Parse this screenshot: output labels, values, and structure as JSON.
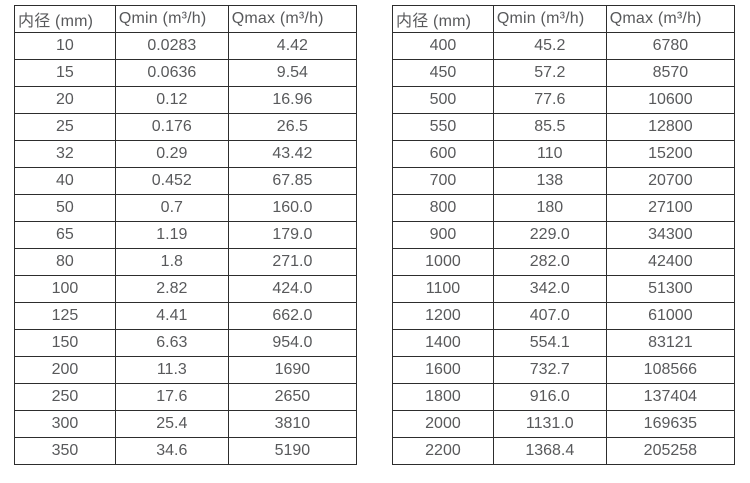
{
  "columns": [
    "内径 (mm)",
    "Qmin (m³/h)",
    "Qmax (m³/h)"
  ],
  "colors": {
    "border": "#2d2d2d",
    "text": "#58595b",
    "background": "#ffffff"
  },
  "tables": [
    {
      "name": "small-diameters",
      "rows": [
        [
          "10",
          "0.0283",
          "4.42"
        ],
        [
          "15",
          "0.0636",
          "9.54"
        ],
        [
          "20",
          "0.12",
          "16.96"
        ],
        [
          "25",
          "0.176",
          "26.5"
        ],
        [
          "32",
          "0.29",
          "43.42"
        ],
        [
          "40",
          "0.452",
          "67.85"
        ],
        [
          "50",
          "0.7",
          "160.0"
        ],
        [
          "65",
          "1.19",
          "179.0"
        ],
        [
          "80",
          "1.8",
          "271.0"
        ],
        [
          "100",
          "2.82",
          "424.0"
        ],
        [
          "125",
          "4.41",
          "662.0"
        ],
        [
          "150",
          "6.63",
          "954.0"
        ],
        [
          "200",
          "11.3",
          "1690"
        ],
        [
          "250",
          "17.6",
          "2650"
        ],
        [
          "300",
          "25.4",
          "3810"
        ],
        [
          "350",
          "34.6",
          "5190"
        ]
      ]
    },
    {
      "name": "large-diameters",
      "rows": [
        [
          "400",
          "45.2",
          "6780"
        ],
        [
          "450",
          "57.2",
          "8570"
        ],
        [
          "500",
          "77.6",
          "10600"
        ],
        [
          "550",
          "85.5",
          "12800"
        ],
        [
          "600",
          "110",
          "15200"
        ],
        [
          "700",
          "138",
          "20700"
        ],
        [
          "800",
          "180",
          "27100"
        ],
        [
          "900",
          "229.0",
          "34300"
        ],
        [
          "1000",
          "282.0",
          "42400"
        ],
        [
          "1100",
          "342.0",
          "51300"
        ],
        [
          "1200",
          "407.0",
          "61000"
        ],
        [
          "1400",
          "554.1",
          "83121"
        ],
        [
          "1600",
          "732.7",
          "108566"
        ],
        [
          "1800",
          "916.0",
          "137404"
        ],
        [
          "2000",
          "1131.0",
          "169635"
        ],
        [
          "2200",
          "1368.4",
          "205258"
        ]
      ]
    }
  ]
}
